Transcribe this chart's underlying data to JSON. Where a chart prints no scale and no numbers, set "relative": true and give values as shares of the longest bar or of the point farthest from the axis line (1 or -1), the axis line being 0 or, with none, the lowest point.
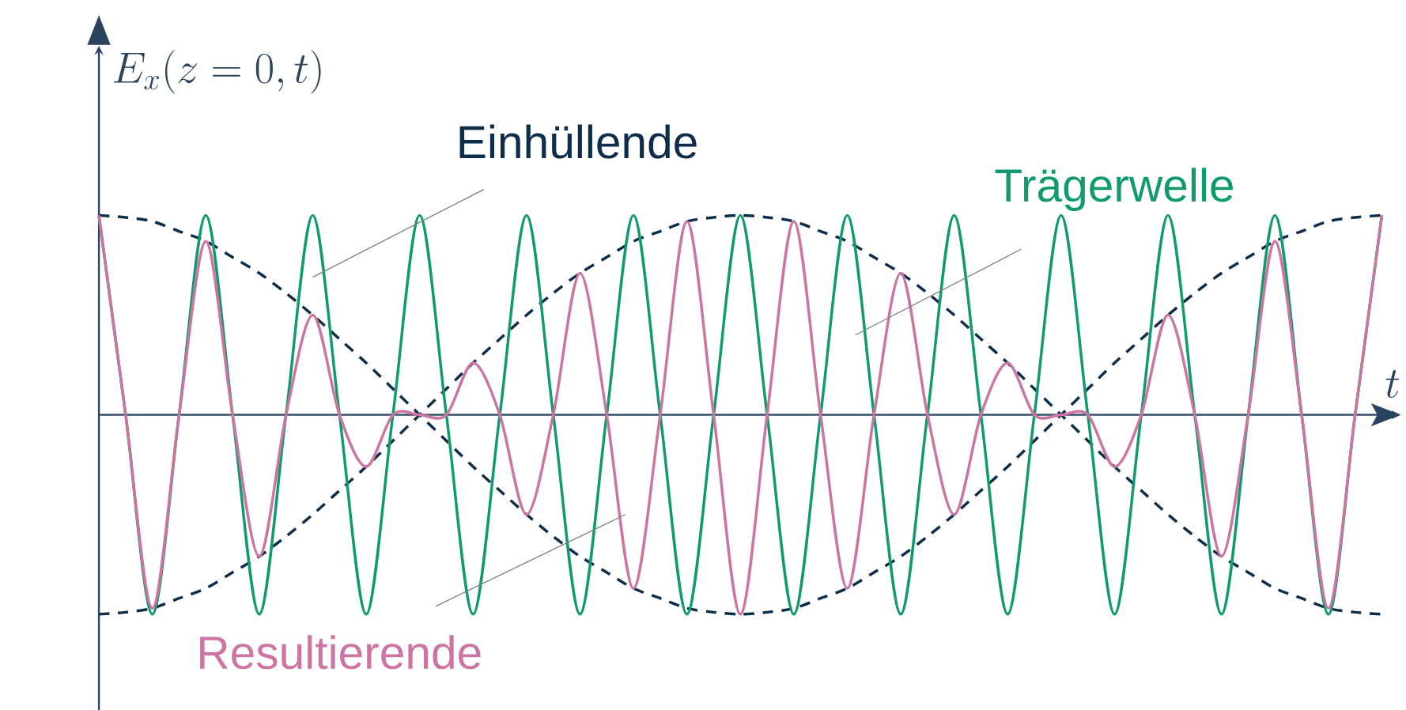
{
  "chart_data": {
    "type": "line",
    "relative": true,
    "tick_labels": false,
    "marker": "none",
    "xlabel": "t",
    "annotations": [
      "E_x(z=0,t)"
    ],
    "categories": [
      null,
      null,
      null,
      null,
      null,
      null,
      null,
      null,
      null,
      null,
      null,
      null,
      null,
      null,
      null,
      null,
      null,
      null,
      null,
      null,
      null,
      null,
      null,
      null,
      null,
      null,
      null,
      null,
      null,
      null,
      null,
      null,
      null,
      null,
      null,
      null,
      null,
      null,
      null,
      null,
      null,
      null,
      null,
      null,
      null,
      null,
      null,
      null,
      null
    ],
    "series": [
      {
        "name": "Einhüllende",
        "color": "#0d2d4a",
        "line_style": "dashed",
        "values": [
          1,
          0.99,
          0.97,
          0.92,
          0.87,
          0.79,
          0.71,
          0.61,
          0.5,
          0.38,
          0.26,
          0.13,
          0,
          -0.13,
          -0.26,
          -0.38,
          -0.5,
          -0.61,
          -0.71,
          -0.79,
          -0.87,
          -0.92,
          -0.97,
          -0.99,
          -1,
          -0.99,
          -0.97,
          -0.92,
          -0.87,
          -0.79,
          -0.71,
          -0.61,
          -0.5,
          -0.38,
          -0.26,
          -0.13,
          0,
          0.13,
          0.26,
          0.38,
          0.5,
          0.61,
          0.71,
          0.79,
          0.87,
          0.92,
          0.97,
          0.99,
          1
        ]
      },
      {
        "color": "#0d2d4a",
        "line_style": "dashed",
        "values": [
          -1,
          -0.99,
          -0.97,
          -0.92,
          -0.87,
          -0.79,
          -0.71,
          -0.61,
          -0.5,
          -0.38,
          -0.26,
          -0.13,
          0,
          0.13,
          0.26,
          0.38,
          0.5,
          0.61,
          0.71,
          0.79,
          0.87,
          0.92,
          0.97,
          0.99,
          1,
          0.99,
          0.97,
          0.92,
          0.87,
          0.79,
          0.71,
          0.61,
          0.5,
          0.38,
          0.26,
          0.13,
          0,
          -0.13,
          -0.26,
          -0.38,
          -0.5,
          -0.61,
          -0.71,
          -0.79,
          -0.87,
          -0.92,
          -0.97,
          -0.99,
          -1
        ]
      },
      {
        "name": "Trägerwelle",
        "color": "#109a6e",
        "line_style": "solid",
        "values": [
          1,
          0,
          -1,
          0,
          1,
          0,
          -1,
          0,
          1,
          0,
          -1,
          0,
          1,
          0,
          -1,
          0,
          1,
          0,
          -1,
          0,
          1,
          0,
          -1,
          0,
          1,
          0,
          -1,
          0,
          1,
          0,
          -1,
          0,
          1,
          0,
          -1,
          0,
          1,
          0,
          -1,
          0,
          1,
          0,
          -1,
          0,
          1,
          0,
          -1,
          0,
          1
        ]
      },
      {
        "name": "Resultierende",
        "color": "#cc75a3",
        "line_style": "solid",
        "values": [
          1,
          0,
          -0.97,
          0,
          0.87,
          0,
          -0.71,
          0,
          0.5,
          0,
          -0.26,
          0,
          0,
          0,
          0.26,
          0,
          -0.5,
          0,
          0.71,
          0,
          -0.87,
          0,
          0.97,
          0,
          -1,
          0,
          0.97,
          0,
          -0.87,
          0,
          0.71,
          0,
          -0.5,
          0,
          0.26,
          0,
          0,
          0,
          -0.26,
          0,
          0.5,
          0,
          -0.71,
          0,
          0.87,
          0,
          -0.97,
          0,
          1
        ]
      }
    ]
  }
}
